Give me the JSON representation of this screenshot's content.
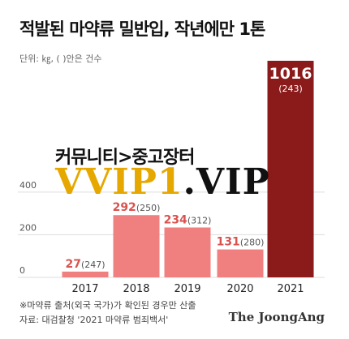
{
  "chart_data": {
    "type": "bar",
    "title": "적발된 마약류 밀반입, 작년에만 1톤",
    "unit_note": "단위: ㎏, ( )안은 건수",
    "categories": [
      "2017",
      "2018",
      "2019",
      "2020",
      "2021"
    ],
    "values": [
      27,
      292,
      234,
      131,
      1016
    ],
    "counts": [
      247,
      250,
      312,
      280,
      243
    ],
    "value_labels": [
      "27",
      "292",
      "234",
      "131",
      "1016"
    ],
    "count_labels": [
      "(247)",
      "(250)",
      "(312)",
      "(280)",
      "(243)"
    ],
    "y_ticks": [
      0,
      200,
      400
    ],
    "y_tick_labels": [
      "0",
      "200",
      "400"
    ],
    "ylim": [
      0,
      1050
    ],
    "grid": true,
    "colors": {
      "bar": "#f08080",
      "highlight_bar": "#8b1a1a",
      "value_label": "#d9534f",
      "highlight_label": "#ffffff"
    }
  },
  "watermark": {
    "text": "커뮤니티>중고장터",
    "logo_part1": "VVIP1",
    "logo_part2": ".VIP"
  },
  "footnotes": [
    "※마약류 출처(외국 국가)가 확인된 경우만 산출",
    "자료: 대검찰청 '2021 마약류 범죄백서'"
  ],
  "brand": "The JoongAng"
}
